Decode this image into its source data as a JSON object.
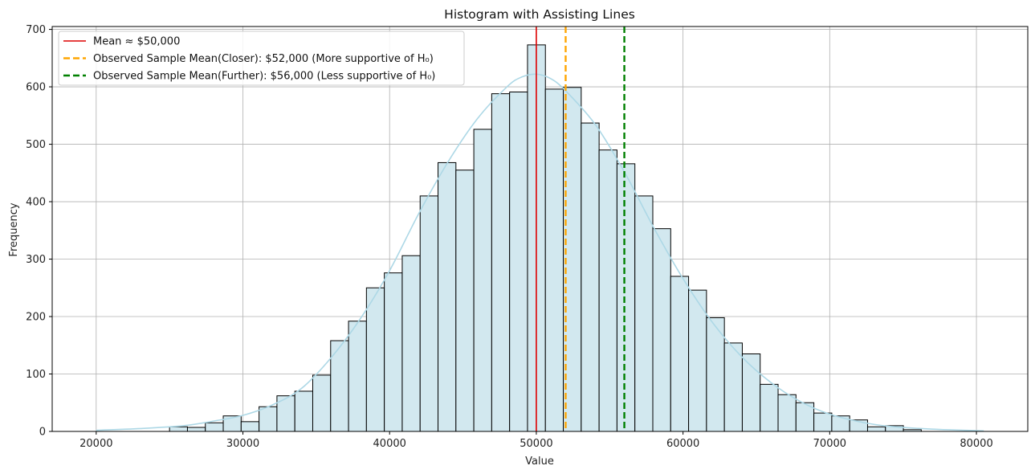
{
  "chart_data": {
    "type": "bar",
    "title": "Histogram with Assisting Lines",
    "xlabel": "Value",
    "ylabel": "Frequency",
    "xlim": [
      17000,
      83500
    ],
    "ylim": [
      0,
      705
    ],
    "grid": true,
    "legend_position": "top-left",
    "xticks": [
      20000,
      30000,
      40000,
      50000,
      60000,
      70000,
      80000
    ],
    "yticks": [
      0,
      100,
      200,
      300,
      400,
      500,
      600,
      700
    ],
    "bin_edges": [
      25000,
      26220,
      27440,
      28660,
      29880,
      31100,
      32320,
      33540,
      34760,
      35980,
      37200,
      38420,
      39640,
      40860,
      42080,
      43300,
      44520,
      45740,
      46960,
      48180,
      49400,
      50620,
      51840,
      53060,
      54280,
      55500,
      56720,
      57940,
      59160,
      60380,
      61600,
      62820,
      64040,
      65260,
      66480,
      67700,
      68920,
      70140,
      71360,
      72580,
      73800,
      75020,
      76240
    ],
    "counts": [
      8,
      7,
      15,
      27,
      17,
      43,
      62,
      70,
      98,
      158,
      192,
      250,
      276,
      306,
      410,
      468,
      455,
      526,
      588,
      591,
      673,
      596,
      599,
      537,
      490,
      466,
      410,
      353,
      270,
      246,
      198,
      154,
      135,
      82,
      64,
      50,
      32,
      27,
      20,
      8,
      10,
      3
    ],
    "kde": {
      "x": [
        20000,
        23000,
        26000,
        28000,
        30000,
        32000,
        34000,
        36000,
        38000,
        40000,
        42000,
        44000,
        46000,
        48000,
        49000,
        50000,
        51000,
        52000,
        54000,
        56000,
        58000,
        60000,
        62000,
        64000,
        66000,
        68000,
        70000,
        72000,
        74000,
        77000,
        80500
      ],
      "y": [
        2,
        5,
        10,
        18,
        28,
        46,
        75,
        128,
        196,
        280,
        380,
        470,
        545,
        600,
        617,
        622,
        614,
        593,
        535,
        452,
        355,
        266,
        190,
        130,
        85,
        52,
        30,
        17,
        9,
        4,
        1
      ]
    },
    "vlines": [
      {
        "x": 50000,
        "color": "#dd0000",
        "style": "solid",
        "label": "Mean ≈ $50,000"
      },
      {
        "x": 52000,
        "color": "#ffa500",
        "style": "dashed",
        "label": "Observed Sample Mean(Closer): $52,000 (More supportive of H₀)"
      },
      {
        "x": 56000,
        "color": "#008000",
        "style": "dashed",
        "label": "Observed Sample Mean(Further): $56,000 (Less supportive of H₀)"
      }
    ],
    "colors": {
      "bar_fill": "#d2e8ef",
      "bar_edge": "#000000",
      "kde": "#add8e6",
      "grid": "#b0b0b0"
    }
  }
}
